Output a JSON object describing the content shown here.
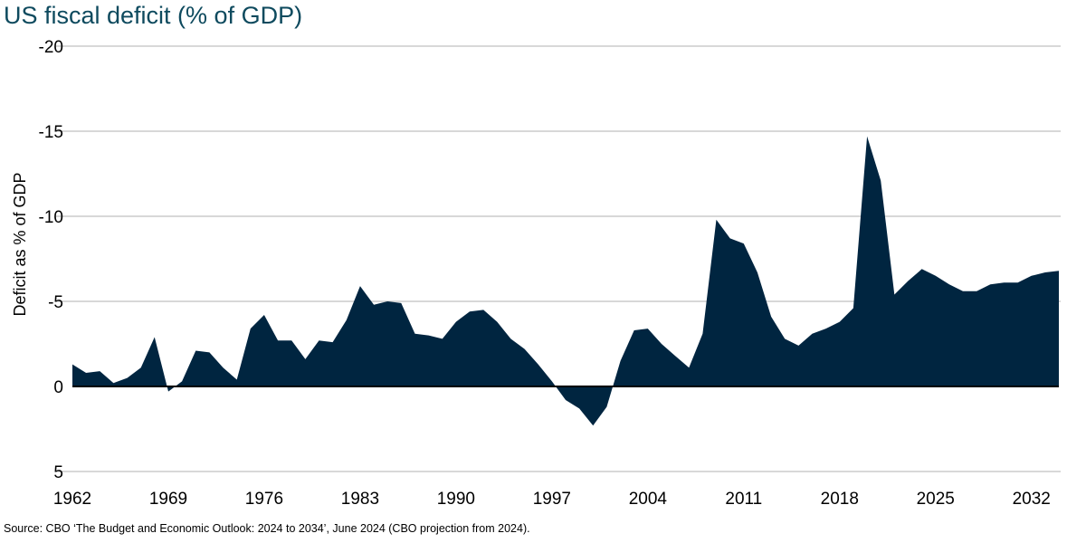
{
  "chart_data": {
    "type": "area",
    "title": "US fiscal deficit (% of GDP)",
    "ylabel": "Deficit as % of GDP",
    "xlabel": "",
    "source": "Source: CBO ‘The Budget and Economic Outlook: 2024 to 2034’, June 2024 (CBO projection from 2024).",
    "ylim": [
      5,
      -20
    ],
    "y_inverted": true,
    "yticks": [
      -20,
      -15,
      -10,
      -5,
      0,
      5
    ],
    "xticks": [
      1962,
      1969,
      1976,
      1983,
      1990,
      1997,
      2004,
      2011,
      2018,
      2025,
      2032
    ],
    "grid": true,
    "fill_color": "#002540",
    "x": [
      1962,
      1963,
      1964,
      1965,
      1966,
      1967,
      1968,
      1969,
      1970,
      1971,
      1972,
      1973,
      1974,
      1975,
      1976,
      1977,
      1978,
      1979,
      1980,
      1981,
      1982,
      1983,
      1984,
      1985,
      1986,
      1987,
      1988,
      1989,
      1990,
      1991,
      1992,
      1993,
      1994,
      1995,
      1996,
      1997,
      1998,
      1999,
      2000,
      2001,
      2002,
      2003,
      2004,
      2005,
      2006,
      2007,
      2008,
      2009,
      2010,
      2011,
      2012,
      2013,
      2014,
      2015,
      2016,
      2017,
      2018,
      2019,
      2020,
      2021,
      2022,
      2023,
      2024,
      2025,
      2026,
      2027,
      2028,
      2029,
      2030,
      2031,
      2032,
      2033,
      2034
    ],
    "values": [
      -1.3,
      -0.8,
      -0.9,
      -0.2,
      -0.5,
      -1.1,
      -2.9,
      0.3,
      -0.3,
      -2.1,
      -2.0,
      -1.1,
      -0.4,
      -3.4,
      -4.2,
      -2.7,
      -2.7,
      -1.6,
      -2.7,
      -2.6,
      -3.9,
      -5.9,
      -4.8,
      -5.0,
      -4.9,
      -3.1,
      -3.0,
      -2.8,
      -3.8,
      -4.4,
      -4.5,
      -3.8,
      -2.8,
      -2.2,
      -1.3,
      -0.3,
      0.8,
      1.3,
      2.3,
      1.2,
      -1.5,
      -3.3,
      -3.4,
      -2.5,
      -1.8,
      -1.1,
      -3.1,
      -9.8,
      -8.7,
      -8.4,
      -6.7,
      -4.1,
      -2.8,
      -2.4,
      -3.1,
      -3.4,
      -3.8,
      -4.6,
      -14.7,
      -12.1,
      -5.4,
      -6.2,
      -6.9,
      -6.5,
      -6.0,
      -5.6,
      -5.6,
      -6.0,
      -6.1,
      -6.1,
      -6.5,
      -6.7,
      -6.8
    ]
  }
}
